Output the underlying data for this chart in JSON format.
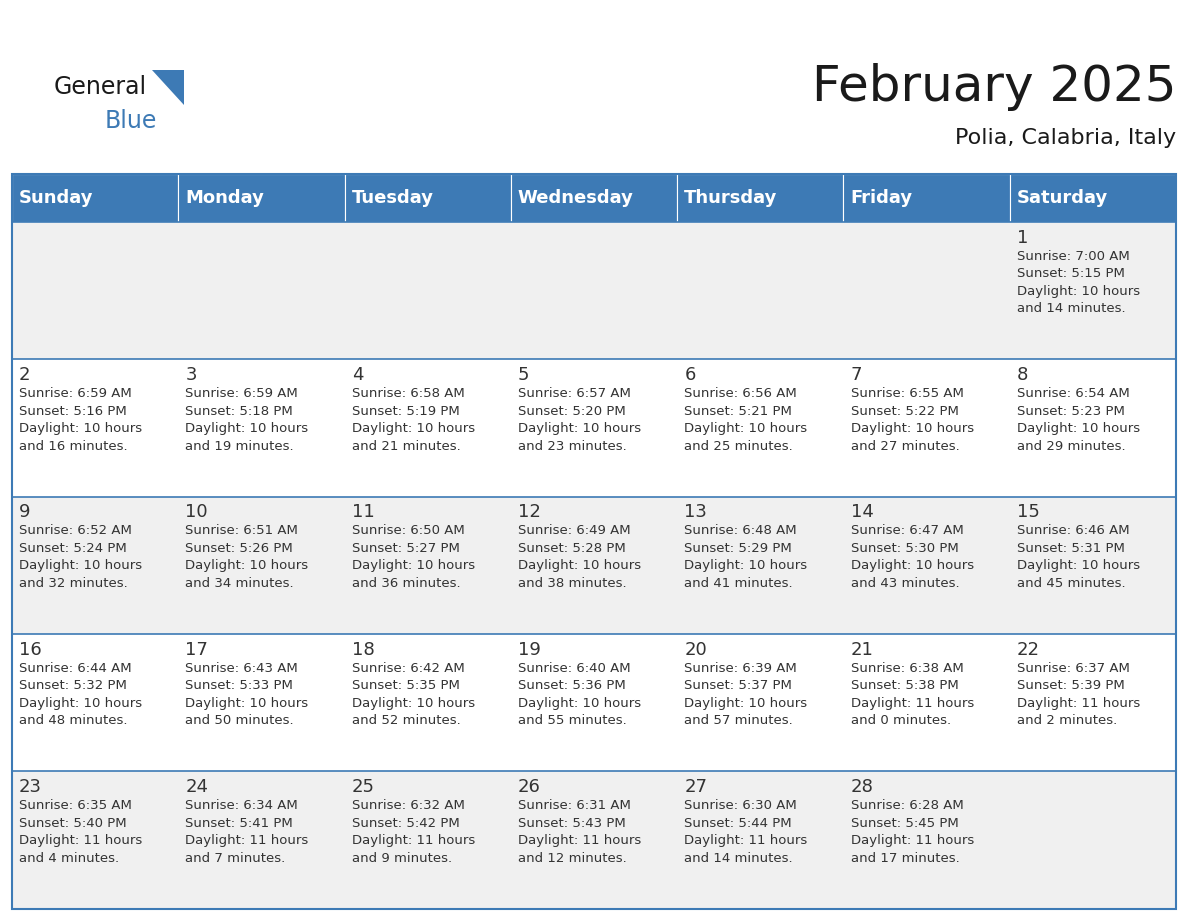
{
  "title": "February 2025",
  "subtitle": "Polia, Calabria, Italy",
  "header_bg": "#3d7ab5",
  "header_text": "#ffffff",
  "row_bg_odd": "#f0f0f0",
  "row_bg_even": "#ffffff",
  "border_color": "#3d7ab5",
  "day_names": [
    "Sunday",
    "Monday",
    "Tuesday",
    "Wednesday",
    "Thursday",
    "Friday",
    "Saturday"
  ],
  "title_fontsize": 36,
  "subtitle_fontsize": 16,
  "header_fontsize": 13,
  "day_num_fontsize": 13,
  "detail_fontsize": 9.5,
  "calendar": [
    [
      {
        "day": "",
        "info": ""
      },
      {
        "day": "",
        "info": ""
      },
      {
        "day": "",
        "info": ""
      },
      {
        "day": "",
        "info": ""
      },
      {
        "day": "",
        "info": ""
      },
      {
        "day": "",
        "info": ""
      },
      {
        "day": "1",
        "info": "Sunrise: 7:00 AM\nSunset: 5:15 PM\nDaylight: 10 hours\nand 14 minutes."
      }
    ],
    [
      {
        "day": "2",
        "info": "Sunrise: 6:59 AM\nSunset: 5:16 PM\nDaylight: 10 hours\nand 16 minutes."
      },
      {
        "day": "3",
        "info": "Sunrise: 6:59 AM\nSunset: 5:18 PM\nDaylight: 10 hours\nand 19 minutes."
      },
      {
        "day": "4",
        "info": "Sunrise: 6:58 AM\nSunset: 5:19 PM\nDaylight: 10 hours\nand 21 minutes."
      },
      {
        "day": "5",
        "info": "Sunrise: 6:57 AM\nSunset: 5:20 PM\nDaylight: 10 hours\nand 23 minutes."
      },
      {
        "day": "6",
        "info": "Sunrise: 6:56 AM\nSunset: 5:21 PM\nDaylight: 10 hours\nand 25 minutes."
      },
      {
        "day": "7",
        "info": "Sunrise: 6:55 AM\nSunset: 5:22 PM\nDaylight: 10 hours\nand 27 minutes."
      },
      {
        "day": "8",
        "info": "Sunrise: 6:54 AM\nSunset: 5:23 PM\nDaylight: 10 hours\nand 29 minutes."
      }
    ],
    [
      {
        "day": "9",
        "info": "Sunrise: 6:52 AM\nSunset: 5:24 PM\nDaylight: 10 hours\nand 32 minutes."
      },
      {
        "day": "10",
        "info": "Sunrise: 6:51 AM\nSunset: 5:26 PM\nDaylight: 10 hours\nand 34 minutes."
      },
      {
        "day": "11",
        "info": "Sunrise: 6:50 AM\nSunset: 5:27 PM\nDaylight: 10 hours\nand 36 minutes."
      },
      {
        "day": "12",
        "info": "Sunrise: 6:49 AM\nSunset: 5:28 PM\nDaylight: 10 hours\nand 38 minutes."
      },
      {
        "day": "13",
        "info": "Sunrise: 6:48 AM\nSunset: 5:29 PM\nDaylight: 10 hours\nand 41 minutes."
      },
      {
        "day": "14",
        "info": "Sunrise: 6:47 AM\nSunset: 5:30 PM\nDaylight: 10 hours\nand 43 minutes."
      },
      {
        "day": "15",
        "info": "Sunrise: 6:46 AM\nSunset: 5:31 PM\nDaylight: 10 hours\nand 45 minutes."
      }
    ],
    [
      {
        "day": "16",
        "info": "Sunrise: 6:44 AM\nSunset: 5:32 PM\nDaylight: 10 hours\nand 48 minutes."
      },
      {
        "day": "17",
        "info": "Sunrise: 6:43 AM\nSunset: 5:33 PM\nDaylight: 10 hours\nand 50 minutes."
      },
      {
        "day": "18",
        "info": "Sunrise: 6:42 AM\nSunset: 5:35 PM\nDaylight: 10 hours\nand 52 minutes."
      },
      {
        "day": "19",
        "info": "Sunrise: 6:40 AM\nSunset: 5:36 PM\nDaylight: 10 hours\nand 55 minutes."
      },
      {
        "day": "20",
        "info": "Sunrise: 6:39 AM\nSunset: 5:37 PM\nDaylight: 10 hours\nand 57 minutes."
      },
      {
        "day": "21",
        "info": "Sunrise: 6:38 AM\nSunset: 5:38 PM\nDaylight: 11 hours\nand 0 minutes."
      },
      {
        "day": "22",
        "info": "Sunrise: 6:37 AM\nSunset: 5:39 PM\nDaylight: 11 hours\nand 2 minutes."
      }
    ],
    [
      {
        "day": "23",
        "info": "Sunrise: 6:35 AM\nSunset: 5:40 PM\nDaylight: 11 hours\nand 4 minutes."
      },
      {
        "day": "24",
        "info": "Sunrise: 6:34 AM\nSunset: 5:41 PM\nDaylight: 11 hours\nand 7 minutes."
      },
      {
        "day": "25",
        "info": "Sunrise: 6:32 AM\nSunset: 5:42 PM\nDaylight: 11 hours\nand 9 minutes."
      },
      {
        "day": "26",
        "info": "Sunrise: 6:31 AM\nSunset: 5:43 PM\nDaylight: 11 hours\nand 12 minutes."
      },
      {
        "day": "27",
        "info": "Sunrise: 6:30 AM\nSunset: 5:44 PM\nDaylight: 11 hours\nand 14 minutes."
      },
      {
        "day": "28",
        "info": "Sunrise: 6:28 AM\nSunset: 5:45 PM\nDaylight: 11 hours\nand 17 minutes."
      },
      {
        "day": "",
        "info": ""
      }
    ]
  ],
  "logo_general_color": "#1a1a1a",
  "logo_blue_color": "#3d7ab5",
  "logo_triangle_color": "#3d7ab5"
}
